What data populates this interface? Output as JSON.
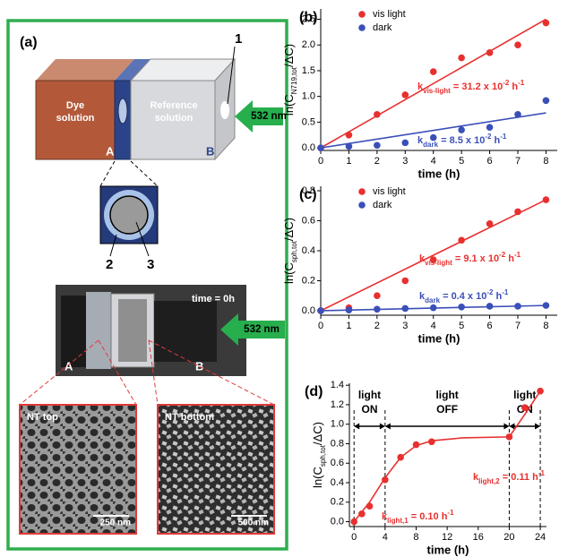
{
  "diagram": {
    "panel_label": "(a)",
    "box": {
      "dye": [
        "Dye",
        "solution"
      ],
      "reference": [
        "Reference",
        "solution"
      ],
      "label_a": "A",
      "label_b": "B",
      "callout_1": "1",
      "laser": "532 nm"
    },
    "detail": {
      "callout_2": "2",
      "callout_3": "3"
    },
    "photo": {
      "time": "time = 0h",
      "label_a": "A",
      "label_b": "B",
      "laser": "532 nm"
    },
    "sem_top": {
      "title": "NT top",
      "scale": "250 nm"
    },
    "sem_bottom": {
      "title": "NT bottom",
      "scale": "500 nm"
    }
  },
  "chart_data": [
    {
      "type": "scatter",
      "panel_label": "(b)",
      "xlabel": "time (h)",
      "ylabel": [
        {
          "text": "ln(C"
        },
        {
          "text": "N719,tot",
          "sub": true
        },
        {
          "text": "/ΔC)"
        }
      ],
      "xlim": [
        0,
        8.4
      ],
      "ylim": [
        -0.05,
        2.7
      ],
      "xticks": [
        0,
        1,
        2,
        3,
        4,
        5,
        6,
        7,
        8
      ],
      "yticks": [
        {
          "value": 0,
          "label": "0.0"
        },
        {
          "value": 0.5,
          "label": "0.5"
        },
        {
          "value": 1,
          "label": "1.0"
        },
        {
          "value": 1.5,
          "label": "1.5"
        },
        {
          "value": 2,
          "label": "2.0"
        },
        {
          "value": 2.5,
          "label": "2.5"
        }
      ],
      "legend": "top-left",
      "series": [
        {
          "name": "vis light",
          "type": "points",
          "color": "#e8302f",
          "x": [
            0,
            1,
            2,
            3,
            4,
            5,
            6,
            7,
            8
          ],
          "values": [
            0,
            0.25,
            0.65,
            1.03,
            1.48,
            1.75,
            1.85,
            2.0,
            2.43
          ]
        },
        {
          "name": "dark",
          "type": "points",
          "color": "#3b4fb8",
          "x": [
            0,
            1,
            2,
            3,
            4,
            5,
            6,
            7,
            8
          ],
          "values": [
            0,
            0.03,
            0.05,
            0.1,
            0.2,
            0.35,
            0.4,
            0.65,
            0.92
          ]
        },
        {
          "type": "line",
          "color": "#e8302f",
          "x": [
            0,
            8
          ],
          "values": [
            0,
            2.5
          ]
        },
        {
          "type": "line",
          "color": "#3b4fb8",
          "x": [
            0,
            8
          ],
          "values": [
            0,
            0.68
          ]
        }
      ],
      "annotations": [
        {
          "color": "#e8302f",
          "parts": [
            {
              "text": "k"
            },
            {
              "text": "vis-light",
              "sub": true
            },
            {
              "text": " = 31.2 x 10"
            },
            {
              "text": "-2",
              "sup": true
            },
            {
              "text": " h"
            },
            {
              "text": "-1",
              "sup": true
            }
          ]
        },
        {
          "color": "#3b4fb8",
          "parts": [
            {
              "text": "k"
            },
            {
              "text": "dark",
              "sub": true
            },
            {
              "text": " = 8.5 x 10"
            },
            {
              "text": "-2",
              "sup": true
            },
            {
              "text": " h"
            },
            {
              "text": "-1",
              "sup": true
            }
          ]
        }
      ]
    },
    {
      "type": "scatter",
      "panel_label": "(c)",
      "xlabel": "time (h)",
      "ylabel": [
        {
          "text": "ln(C"
        },
        {
          "text": "sph,tot",
          "sub": true
        },
        {
          "text": "/ΔC)"
        }
      ],
      "xlim": [
        0,
        8.4
      ],
      "ylim": [
        -0.03,
        0.83
      ],
      "xticks": [
        0,
        1,
        2,
        3,
        4,
        5,
        6,
        7,
        8
      ],
      "yticks": [
        {
          "value": 0,
          "label": "0.0"
        },
        {
          "value": 0.2,
          "label": "0.2"
        },
        {
          "value": 0.4,
          "label": "0.4"
        },
        {
          "value": 0.6,
          "label": "0.6"
        },
        {
          "value": 0.8,
          "label": "0.8"
        }
      ],
      "legend": "top-left",
      "series": [
        {
          "name": "vis light",
          "type": "points",
          "color": "#e8302f",
          "x": [
            0,
            1,
            2,
            3,
            4,
            5,
            6,
            7,
            8
          ],
          "values": [
            0,
            0.02,
            0.1,
            0.2,
            0.34,
            0.47,
            0.58,
            0.66,
            0.74
          ]
        },
        {
          "name": "dark",
          "type": "points",
          "color": "#3b4fb8",
          "x": [
            0,
            1,
            2,
            3,
            4,
            5,
            6,
            7,
            8
          ],
          "values": [
            0,
            0.005,
            0.01,
            0.015,
            0.02,
            0.025,
            0.03,
            0.03,
            0.035
          ]
        },
        {
          "type": "line",
          "color": "#e8302f",
          "x": [
            0,
            8
          ],
          "values": [
            0,
            0.74
          ]
        },
        {
          "type": "line",
          "color": "#3b4fb8",
          "x": [
            0,
            8
          ],
          "values": [
            0,
            0.035
          ]
        }
      ],
      "annotations": [
        {
          "color": "#e8302f",
          "parts": [
            {
              "text": "k"
            },
            {
              "text": "vis-light",
              "sub": true
            },
            {
              "text": " = 9.1 x 10"
            },
            {
              "text": "-2",
              "sup": true
            },
            {
              "text": " h"
            },
            {
              "text": "-1",
              "sup": true
            }
          ]
        },
        {
          "color": "#3b4fb8",
          "parts": [
            {
              "text": "k"
            },
            {
              "text": "dark",
              "sub": true
            },
            {
              "text": " = 0.4 x 10"
            },
            {
              "text": "-2",
              "sup": true
            },
            {
              "text": " h"
            },
            {
              "text": "-1",
              "sup": true
            }
          ]
        }
      ]
    },
    {
      "type": "scatter",
      "panel_label": "(d)",
      "xlabel": "time (h)",
      "ylabel": [
        {
          "text": "ln(C"
        },
        {
          "text": "sph,tot",
          "sub": true
        },
        {
          "text": "/ΔC)"
        }
      ],
      "xlim": [
        -0.6,
        24.8
      ],
      "ylim": [
        -0.05,
        1.42
      ],
      "xticks": [
        0,
        4,
        8,
        12,
        16,
        20,
        24
      ],
      "yticks": [
        {
          "value": 0,
          "label": "0.0"
        },
        {
          "value": 0.2,
          "label": "0.2"
        },
        {
          "value": 0.4,
          "label": "0.4"
        },
        {
          "value": 0.6,
          "label": "0.6"
        },
        {
          "value": 0.8,
          "label": "0.8"
        },
        {
          "value": 1,
          "label": "1.0"
        },
        {
          "value": 1.2,
          "label": "1.2"
        },
        {
          "value": 1.4,
          "label": "1.4"
        }
      ],
      "series": [
        {
          "type": "points",
          "color": "#e8302f",
          "x": [
            0,
            1,
            2,
            4,
            6,
            8,
            10,
            20,
            22,
            24
          ],
          "values": [
            0,
            0.08,
            0.16,
            0.43,
            0.66,
            0.79,
            0.82,
            0.87,
            1.17,
            1.34
          ]
        },
        {
          "type": "line",
          "color": "#e8302f",
          "x": [
            0,
            2,
            4,
            6,
            8,
            10,
            14,
            20,
            22,
            24
          ],
          "values": [
            0,
            0.2,
            0.45,
            0.66,
            0.78,
            0.83,
            0.86,
            0.87,
            1.1,
            1.34
          ]
        }
      ],
      "vlines": [
        0,
        4,
        20,
        24
      ],
      "regions": [
        {
          "from": 0,
          "to": 4,
          "lines": [
            "light",
            "ON"
          ]
        },
        {
          "from": 4,
          "to": 20,
          "lines": [
            "light",
            "OFF"
          ]
        },
        {
          "from": 20,
          "to": 24,
          "lines": [
            "light",
            "ON"
          ]
        }
      ],
      "annotations": [
        {
          "color": "#e8302f",
          "parts": [
            {
              "text": "k"
            },
            {
              "text": "light,1",
              "sub": true
            },
            {
              "text": " = 0.10 h"
            },
            {
              "text": "-1",
              "sup": true
            }
          ]
        },
        {
          "color": "#e8302f",
          "parts": [
            {
              "text": "k"
            },
            {
              "text": "light,2",
              "sub": true
            },
            {
              "text": " = 0.11 h"
            },
            {
              "text": "-1",
              "sup": true
            }
          ]
        }
      ]
    }
  ]
}
